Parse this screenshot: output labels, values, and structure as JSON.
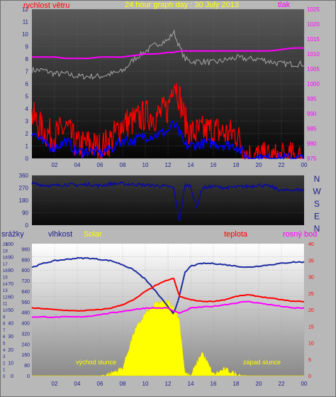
{
  "colors": {
    "frame": "#b8b8b8",
    "axis": "#1e1e8c",
    "wind_speed": "#ff0000",
    "wind_gust": "#0000ff",
    "pressure": "#ff00ff",
    "pressure_label": "#ff00ff",
    "title": "#ffff00",
    "temperature": "#ff0000",
    "dewpoint": "#ff00ff",
    "humidity": "#1e2ea0",
    "solar": "#ffff00",
    "gust_line": "#a8a8a8",
    "direction": "#0a0aa0"
  },
  "top_chart": {
    "title": "24 hour graph day : 30 July 2013",
    "left_label": "rychlost větru",
    "right_label": "tlak",
    "left_ticks": [
      "0",
      "1",
      "2",
      "3",
      "4",
      "5",
      "6",
      "7",
      "8",
      "9",
      "10",
      "11",
      "12"
    ],
    "right_ticks": [
      "975",
      "980",
      "985",
      "990",
      "995",
      "1000",
      "1005",
      "1010",
      "1015",
      "1020",
      "1025"
    ],
    "x_ticks": [
      "02",
      "04",
      "06",
      "08",
      "10",
      "12",
      "14",
      "16",
      "18",
      "20",
      "22",
      "00"
    ]
  },
  "direction_chart": {
    "left_ticks": [
      "0",
      "90",
      "180",
      "270",
      "360"
    ],
    "compass": [
      "N",
      "W",
      "S",
      "E",
      "N"
    ],
    "x_ticks": []
  },
  "bottom_chart": {
    "label_rain": "srážky",
    "label_humidity": "vlhkost",
    "label_solar": "Solar",
    "label_temp": "teplota",
    "label_dew": "rosný bod",
    "humidity_ticks": [
      "0",
      "10",
      "20",
      "30",
      "40",
      "50",
      "60",
      "70",
      "80",
      "90",
      "100"
    ],
    "solar_ticks": [
      "0",
      "80",
      "160",
      "240",
      "320",
      "400",
      "480",
      "560",
      "640",
      "720",
      "800",
      "880",
      "960"
    ],
    "temp_ticks": [
      "0",
      "5",
      "10",
      "15",
      "20",
      "25",
      "30",
      "35",
      "40"
    ],
    "rain_ticks": [
      "0",
      "1",
      "2",
      "3",
      "4",
      "5",
      "6",
      "7",
      "8",
      "9",
      "10",
      "11",
      "12",
      "13",
      "14",
      "15",
      "16",
      "17",
      "18",
      "19",
      "20"
    ],
    "sunrise": "východ slunce",
    "sunset": "západ slunce",
    "x_ticks": [
      "02",
      "04",
      "06",
      "08",
      "10",
      "12",
      "14",
      "16",
      "18",
      "20",
      "22",
      "00"
    ]
  },
  "chart_data": [
    {
      "type": "line",
      "title": "24 hour graph day : 30 July 2013",
      "ylabel": "rychlost větru",
      "y2label": "tlak",
      "ylim": [
        0,
        12
      ],
      "y2lim": [
        975,
        1025
      ],
      "x_hours": [
        0,
        1,
        2,
        3,
        4,
        5,
        6,
        7,
        8,
        9,
        10,
        11,
        12,
        12.5,
        13,
        13.5,
        14,
        15,
        16,
        17,
        18,
        19,
        20,
        21,
        22,
        23,
        24
      ],
      "series": [
        {
          "values": [
            3.5,
            2.2,
            1.8,
            2.5,
            1.0,
            1.2,
            0.8,
            1.5,
            2.8,
            3.0,
            3.5,
            3.4,
            4.0,
            6.5,
            5.0,
            3.0,
            2.0,
            2.2,
            2.3,
            2.0,
            2.0,
            0.2,
            0.1,
            0.0,
            0.0,
            0.1,
            0.0
          ]
        },
        {
          "values": [
            2.2,
            1.2,
            0.9,
            1.4,
            0.5,
            0.6,
            0.4,
            0.8,
            1.5,
            1.4,
            1.8,
            1.9,
            2.2,
            2.8,
            2.0,
            1.0,
            1.0,
            1.2,
            1.2,
            1.1,
            1.0,
            0.1,
            0.0,
            0.0,
            0.0,
            0.0,
            0.0
          ]
        },
        {
          "values": [
            7.1,
            7.1,
            6.8,
            6.8,
            6.6,
            6.6,
            6.6,
            6.8,
            7.0,
            8.0,
            8.6,
            9.2,
            9.5,
            10.2,
            9.0,
            8.0,
            7.8,
            7.8,
            7.7,
            7.9,
            8.1,
            8.0,
            8.0,
            7.8,
            7.6,
            7.6,
            7.6
          ]
        },
        {
          "values": [
            1009,
            1009,
            1009,
            1008.5,
            1008.5,
            1008.5,
            1009,
            1009,
            1009,
            1009.5,
            1010,
            1010,
            1010.5,
            1010.5,
            1011,
            1011,
            1011,
            1011,
            1011,
            1011,
            1011,
            1011,
            1011,
            1011,
            1011.5,
            1012,
            1012
          ]
        }
      ]
    },
    {
      "type": "line",
      "ylim": [
        0,
        360
      ],
      "x_hours": [
        0,
        1,
        2,
        3,
        4,
        5,
        6,
        7,
        8,
        9,
        10,
        11,
        12,
        12.5,
        13,
        13.5,
        14,
        14.5,
        15,
        16,
        17,
        18,
        19,
        20,
        21,
        22,
        23,
        24
      ],
      "series": [
        {
          "values": [
            300,
            290,
            285,
            295,
            290,
            295,
            285,
            300,
            300,
            295,
            290,
            285,
            280,
            270,
            20,
            290,
            285,
            120,
            270,
            280,
            270,
            275,
            280,
            290,
            280,
            250,
            255,
            255
          ]
        }
      ]
    },
    {
      "type": "line",
      "x_hours": [
        0,
        1,
        2,
        3,
        4,
        5,
        6,
        7,
        8,
        9,
        10,
        11,
        12,
        12.5,
        13,
        13.5,
        14,
        15,
        16,
        17,
        18,
        19,
        20,
        21,
        22,
        23,
        24
      ],
      "series": [
        {
          "axis": "temp",
          "values": [
            20.5,
            20.3,
            20.0,
            19.8,
            19.6,
            19.8,
            20.0,
            20.5,
            21.5,
            23.0,
            25.5,
            27.5,
            29.0,
            29.5,
            24.0,
            23.5,
            23.0,
            22.5,
            22.5,
            23.0,
            24.0,
            24.5,
            24.0,
            23.5,
            23.0,
            22.5,
            22.5
          ]
        },
        {
          "axis": "temp",
          "values": [
            17.8,
            17.8,
            17.7,
            17.8,
            17.8,
            18.0,
            18.5,
            19.0,
            19.5,
            20.0,
            20.5,
            20.5,
            20.5,
            19.5,
            19.0,
            19.5,
            20.5,
            20.8,
            21.0,
            21.5,
            22.0,
            22.5,
            22.0,
            21.5,
            21.0,
            20.5,
            20.5
          ]
        },
        {
          "axis": "humidity",
          "values": [
            82,
            85,
            87,
            88,
            89,
            89,
            88,
            87,
            84,
            80,
            73,
            63,
            52,
            47,
            60,
            78,
            83,
            85,
            85,
            84,
            83,
            82,
            83,
            84,
            85,
            86,
            86
          ]
        },
        {
          "axis": "solar",
          "values": [
            0,
            0,
            0,
            0,
            0,
            0,
            0,
            20,
            60,
            330,
            470,
            550,
            560,
            520,
            430,
            20,
            0,
            180,
            10,
            50,
            15,
            0,
            0,
            0,
            0,
            0,
            0
          ]
        }
      ]
    }
  ]
}
